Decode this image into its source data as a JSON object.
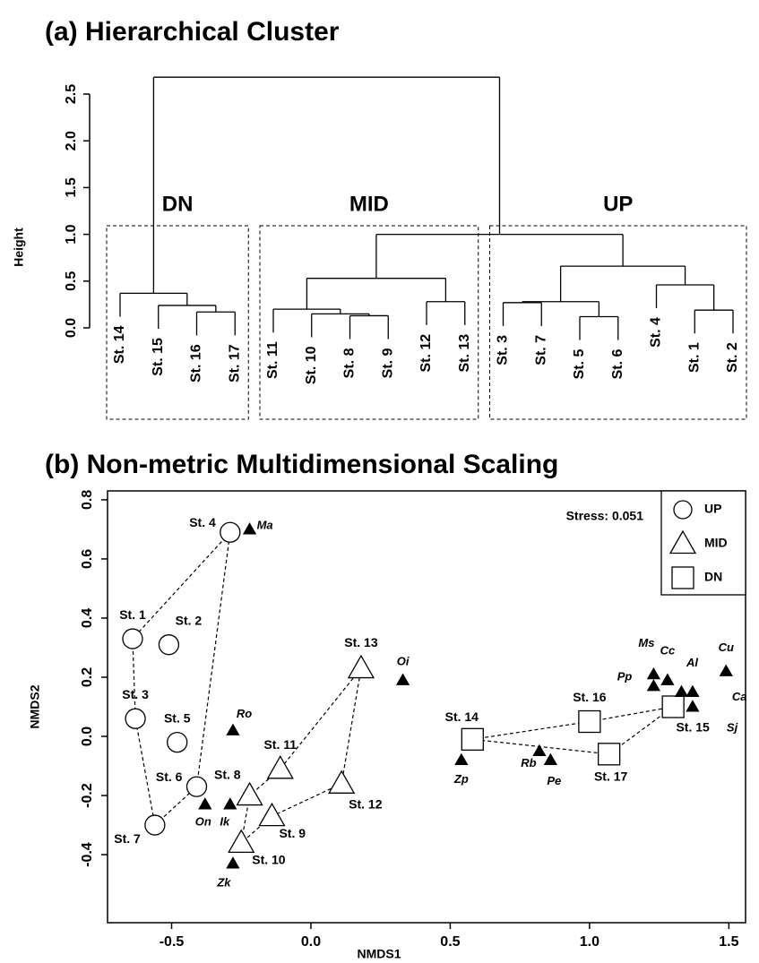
{
  "chart_data": [
    {
      "type": "dendrogram",
      "title": "(a) Hierarchical Cluster",
      "ylabel": "Height",
      "ylim": [
        0,
        2.5
      ],
      "yticks": [
        {
          "value": 0,
          "label": "0.0"
        },
        0.5,
        {
          "value": 1,
          "label": "1.0"
        },
        1.5,
        {
          "value": 2,
          "label": "2.0"
        },
        2.5
      ],
      "tree": {
        "height": 2.68,
        "children": [
          {
            "label": "DN",
            "height": 0.37,
            "children": [
              {
                "label": "St. 14"
              },
              {
                "height": 0.24,
                "children": [
                  {
                    "label": "St. 15"
                  },
                  {
                    "height": 0.17,
                    "children": [
                      {
                        "label": "St. 16"
                      },
                      {
                        "label": "St. 17"
                      }
                    ]
                  }
                ]
              }
            ]
          },
          {
            "height": 1.0,
            "children": [
              {
                "label": "MID",
                "height": 0.53,
                "children": [
                  {
                    "height": 0.2,
                    "children": [
                      {
                        "label": "St. 11"
                      },
                      {
                        "height": 0.15,
                        "children": [
                          {
                            "label": "St. 10"
                          },
                          {
                            "height": 0.13,
                            "children": [
                              {
                                "label": "St. 8"
                              },
                              {
                                "label": "St. 9"
                              }
                            ]
                          }
                        ]
                      }
                    ]
                  },
                  {
                    "height": 0.28,
                    "children": [
                      {
                        "label": "St. 12"
                      },
                      {
                        "label": "St. 13"
                      }
                    ]
                  }
                ]
              },
              {
                "label": "UP",
                "height": 0.66,
                "children": [
                  {
                    "height": 0.28,
                    "children": [
                      {
                        "height": 0.27,
                        "children": [
                          {
                            "label": "St. 3"
                          },
                          {
                            "label": "St. 7"
                          }
                        ]
                      },
                      {
                        "height": 0.12,
                        "children": [
                          {
                            "label": "St. 5"
                          },
                          {
                            "label": "St. 6"
                          }
                        ]
                      }
                    ]
                  },
                  {
                    "height": 0.46,
                    "children": [
                      {
                        "label": "St. 4"
                      },
                      {
                        "height": 0.19,
                        "children": [
                          {
                            "label": "St. 1"
                          },
                          {
                            "label": "St. 2"
                          }
                        ]
                      }
                    ]
                  }
                ]
              }
            ]
          }
        ]
      }
    },
    {
      "type": "scatter",
      "title": "(b) Non-metric Multidimensional Scaling",
      "xlabel": "NMDS1",
      "ylabel": "NMDS2",
      "annotation": "Stress: 0.051",
      "legend": "top-right",
      "xlim": [
        -0.73,
        1.56
      ],
      "ylim": [
        -0.63,
        0.83
      ],
      "xticks": [
        -0.5,
        {
          "value": 0,
          "label": "0.0"
        },
        0.5,
        {
          "value": 1,
          "label": "1.0"
        },
        1.5
      ],
      "yticks": [
        -0.4,
        -0.2,
        {
          "value": 0,
          "label": "0.0"
        },
        0.2,
        0.4,
        0.6,
        0.8
      ],
      "series": [
        {
          "name": "UP",
          "marker": "circle",
          "color": "#000000",
          "fill": "#ffffff",
          "labels": [
            "St. 1",
            "St. 2",
            "St. 3",
            "St. 4",
            "St. 5",
            "St. 6",
            "St. 7"
          ],
          "x": [
            -0.64,
            -0.51,
            -0.63,
            -0.29,
            -0.48,
            -0.41,
            -0.56
          ],
          "values": [
            0.33,
            0.31,
            0.06,
            0.69,
            -0.02,
            -0.17,
            -0.3
          ],
          "hull": [
            3,
            0,
            2,
            6,
            5,
            3
          ]
        },
        {
          "name": "MID",
          "marker": "triangle",
          "color": "#000000",
          "fill": "#ffffff",
          "labels": [
            "St. 8",
            "St. 9",
            "St. 10",
            "St. 11",
            "St. 12",
            "St. 13"
          ],
          "x": [
            -0.22,
            -0.14,
            -0.25,
            -0.11,
            0.11,
            0.18
          ],
          "values": [
            -0.2,
            -0.27,
            -0.36,
            -0.11,
            -0.16,
            0.23
          ],
          "hull": [
            5,
            3,
            0,
            2,
            1,
            4,
            5
          ]
        },
        {
          "name": "DN",
          "marker": "square",
          "color": "#000000",
          "fill": "#ffffff",
          "labels": [
            "St. 14",
            "St. 15",
            "St. 16",
            "St. 17"
          ],
          "x": [
            0.58,
            1.3,
            1.0,
            1.07
          ],
          "values": [
            -0.01,
            0.1,
            0.05,
            -0.06
          ],
          "hull": [
            0,
            2,
            1,
            3,
            0
          ]
        },
        {
          "marker": "filled-triangle",
          "color": "#000000",
          "fill": "#000000",
          "labels": [
            "Ma",
            "Ro",
            "On",
            "Ik",
            "Zk",
            "Oi",
            "Zp",
            "Rb",
            "Pe",
            "Ms",
            "Pp",
            "Cc",
            "Al",
            "Ca",
            "Sj",
            "Cu"
          ],
          "x": [
            -0.22,
            -0.28,
            -0.38,
            -0.29,
            -0.28,
            0.33,
            0.54,
            0.82,
            0.86,
            1.23,
            1.23,
            1.28,
            1.33,
            1.37,
            1.37,
            1.49
          ],
          "values": [
            0.7,
            0.02,
            -0.23,
            -0.23,
            -0.43,
            0.19,
            -0.08,
            -0.05,
            -0.08,
            0.21,
            0.17,
            0.19,
            0.15,
            0.15,
            0.1,
            0.22
          ]
        }
      ]
    }
  ]
}
